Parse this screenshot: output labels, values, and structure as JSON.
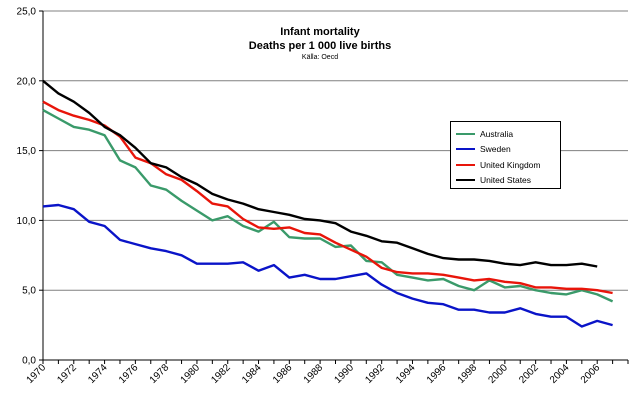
{
  "chart_data": {
    "type": "line",
    "title": "Infant mortality",
    "subtitle": "Deaths per 1 000 live births",
    "source": "Källa: Oecd",
    "xlabel": "",
    "ylabel": "",
    "ylim": [
      0,
      25
    ],
    "xlim": [
      1970,
      2008
    ],
    "yticks": [
      "0,0",
      "5,0",
      "10,0",
      "15,0",
      "20,0",
      "25,0"
    ],
    "xticks": [
      "1970",
      "1972",
      "1974",
      "1976",
      "1978",
      "1980",
      "1982",
      "1984",
      "1986",
      "1988",
      "1990",
      "1992",
      "1994",
      "1996",
      "1998",
      "2000",
      "2002",
      "2004",
      "2006"
    ],
    "grid": true,
    "legend_position": "right",
    "x": [
      1970,
      1971,
      1972,
      1973,
      1974,
      1975,
      1976,
      1977,
      1978,
      1979,
      1980,
      1981,
      1982,
      1983,
      1984,
      1985,
      1986,
      1987,
      1988,
      1989,
      1990,
      1991,
      1992,
      1993,
      1994,
      1995,
      1996,
      1997,
      1998,
      1999,
      2000,
      2001,
      2002,
      2003,
      2004,
      2005,
      2006,
      2007
    ],
    "series": [
      {
        "name": "Australia",
        "color": "#3a9a6a",
        "values": [
          17.9,
          17.3,
          16.7,
          16.5,
          16.1,
          14.3,
          13.8,
          12.5,
          12.2,
          11.4,
          10.7,
          10.0,
          10.3,
          9.6,
          9.2,
          9.9,
          8.8,
          8.7,
          8.7,
          8.1,
          8.2,
          7.1,
          7.0,
          6.1,
          5.9,
          5.7,
          5.8,
          5.3,
          5.0,
          5.7,
          5.2,
          5.3,
          5.0,
          4.8,
          4.7,
          5.0,
          4.7,
          4.2
        ]
      },
      {
        "name": "Sweden",
        "color": "#0a14c8",
        "values": [
          11.0,
          11.1,
          10.8,
          9.9,
          9.6,
          8.6,
          8.3,
          8.0,
          7.8,
          7.5,
          6.9,
          6.9,
          6.9,
          7.0,
          6.4,
          6.8,
          5.9,
          6.1,
          5.8,
          5.8,
          6.0,
          6.2,
          5.4,
          4.8,
          4.4,
          4.1,
          4.0,
          3.6,
          3.6,
          3.4,
          3.4,
          3.7,
          3.3,
          3.1,
          3.1,
          2.4,
          2.8,
          2.5
        ]
      },
      {
        "name": "United Kingdom",
        "color": "#e8150a",
        "values": [
          18.5,
          17.9,
          17.5,
          17.2,
          16.8,
          16.0,
          14.5,
          14.1,
          13.3,
          12.9,
          12.1,
          11.2,
          11.0,
          10.1,
          9.5,
          9.4,
          9.5,
          9.1,
          9.0,
          8.4,
          7.9,
          7.4,
          6.6,
          6.3,
          6.2,
          6.2,
          6.1,
          5.9,
          5.7,
          5.8,
          5.6,
          5.5,
          5.2,
          5.2,
          5.1,
          5.1,
          5.0,
          4.8
        ]
      },
      {
        "name": "United States",
        "color": "#000000",
        "values": [
          20.0,
          19.1,
          18.5,
          17.7,
          16.7,
          16.1,
          15.2,
          14.1,
          13.8,
          13.1,
          12.6,
          11.9,
          11.5,
          11.2,
          10.8,
          10.6,
          10.4,
          10.1,
          10.0,
          9.8,
          9.2,
          8.9,
          8.5,
          8.4,
          8.0,
          7.6,
          7.3,
          7.2,
          7.2,
          7.1,
          6.9,
          6.8,
          7.0,
          6.8,
          6.8,
          6.9,
          6.7,
          null
        ]
      }
    ]
  }
}
